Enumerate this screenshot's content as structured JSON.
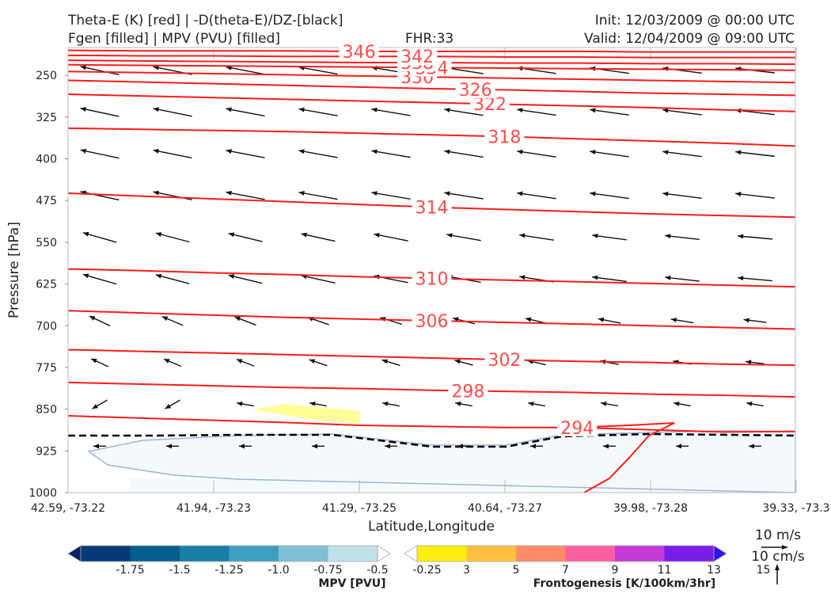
{
  "header": {
    "title_line1": "Theta-E (K) [red] | -D(theta-E)/DZ-[black]",
    "title_line2": "Fgen [filled] | MPV (PVU) [filled]",
    "fhr": "FHR:33",
    "init": "Init: 12/03/2009 @ 00:00 UTC",
    "valid": "Valid: 12/04/2009 @ 09:00 UTC"
  },
  "chart_data": {
    "type": "cross-section",
    "xlabel": "Latitude,Longitude",
    "ylabel": "Pressure [hPa]",
    "x_ticks": [
      "42.59, -73.22",
      "41.94, -73.23",
      "41.29, -73.25",
      "40.64, -73.27",
      "39.98, -73.28",
      "39.33, -73.3"
    ],
    "y_ticks": [
      250,
      325,
      400,
      475,
      550,
      625,
      700,
      775,
      850,
      925,
      1000
    ],
    "ylim": [
      1000,
      200
    ],
    "theta_e_contours": [
      {
        "value": 294,
        "p": [
          862,
          866,
          870,
          874,
          879,
          881,
          883,
          883,
          887,
          891,
          890
        ]
      },
      {
        "value": 298,
        "p": [
          802,
          805,
          808,
          811,
          813,
          816,
          818,
          820,
          823,
          825,
          828
        ]
      },
      {
        "value": 302,
        "p": [
          743,
          746,
          749,
          752,
          755,
          758,
          761,
          764,
          766,
          769,
          771
        ]
      },
      {
        "value": 306,
        "p": [
          673,
          677,
          681,
          685,
          688,
          691,
          694,
          697,
          700,
          703,
          706
        ]
      },
      {
        "value": 310,
        "p": [
          598,
          601,
          605,
          608,
          612,
          615,
          618,
          621,
          624,
          627,
          630
        ]
      },
      {
        "value": 314,
        "p": [
          462,
          467,
          472,
          477,
          482,
          487,
          491,
          495,
          499,
          502,
          505
        ]
      },
      {
        "value": 318,
        "p": [
          345,
          347,
          349,
          351,
          354,
          357,
          360,
          364,
          368,
          372,
          377
        ]
      },
      {
        "value": 322,
        "p": [
          284,
          287,
          290,
          293,
          296,
          299,
          302,
          305,
          308,
          312,
          315
        ]
      },
      {
        "value": 326,
        "p": [
          259,
          262,
          265,
          268,
          271,
          274,
          276,
          279,
          282,
          284,
          286
        ]
      },
      {
        "value": 330,
        "p": [
          243,
          245,
          247,
          249,
          251,
          253,
          255,
          257,
          259,
          261,
          263
        ]
      },
      {
        "value": 334,
        "p": [
          231,
          232,
          233,
          234,
          235,
          236,
          237,
          238,
          239,
          240,
          241
        ]
      },
      {
        "value": 338,
        "p": [
          223,
          224,
          225,
          226,
          227,
          227,
          228,
          228,
          229,
          229,
          230
        ]
      },
      {
        "value": 342,
        "p": [
          214,
          215,
          215,
          216,
          216,
          216,
          217,
          217,
          218,
          218,
          218
        ]
      },
      {
        "value": 346,
        "p": [
          205,
          206,
          206,
          206,
          207,
          207,
          207,
          207,
          208,
          208,
          208
        ]
      }
    ],
    "mpv_colorbar": {
      "title": "MPV [PVU]",
      "ticks": [
        "-1.75",
        "-1.5",
        "-1.25",
        "-1.0",
        "-0.75",
        "-0.5",
        "-0.25"
      ],
      "colors": [
        "#0b1f63",
        "#083a7a",
        "#045d8f",
        "#1a7fa8",
        "#3f9fc0",
        "#7fc0d6",
        "#bfe1ea",
        "#ffffff"
      ]
    },
    "fgen_colorbar": {
      "title": "Frontogenesis [K/100km/3hr]",
      "ticks": [
        "3",
        "5",
        "7",
        "9",
        "11",
        "13",
        "15"
      ],
      "colors": [
        "#ffffff",
        "#ffee12",
        "#ffbf40",
        "#ff8a6a",
        "#ff5fa0",
        "#c53ad8",
        "#7a1de8",
        "#2b16f2"
      ]
    },
    "vector_key": {
      "horizontal": "10 m/s",
      "vertical": "10 cm/s"
    }
  }
}
